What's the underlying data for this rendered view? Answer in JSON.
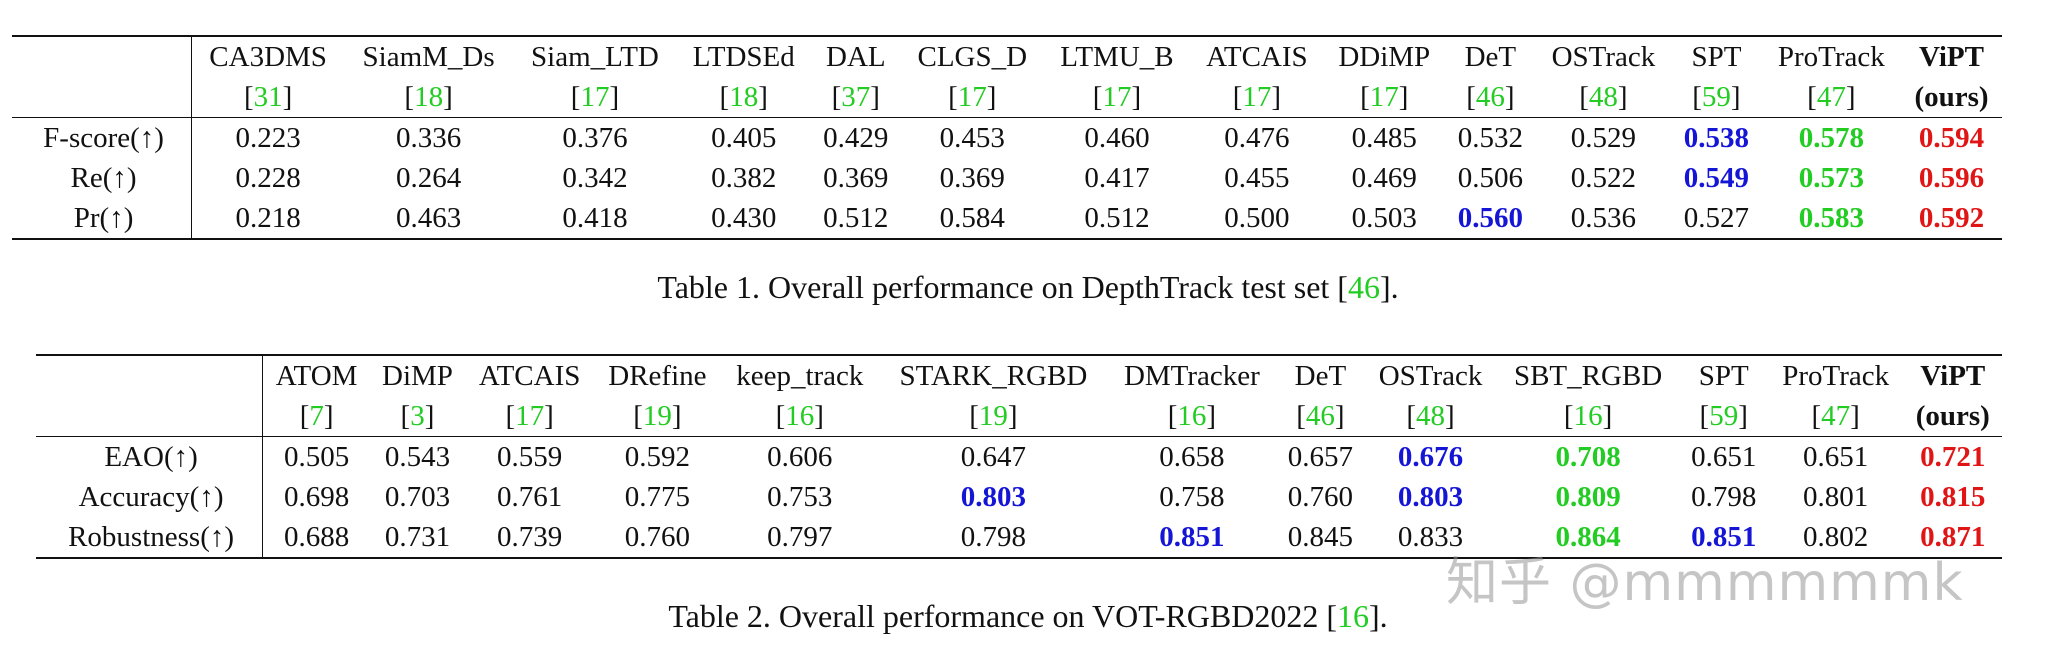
{
  "table1": {
    "columns": [
      {
        "name": "CA3DMS",
        "ref": "31"
      },
      {
        "name": "SiamM_Ds",
        "ref": "18"
      },
      {
        "name": "Siam_LTD",
        "ref": "17"
      },
      {
        "name": "LTDSEd",
        "ref": "18"
      },
      {
        "name": "DAL",
        "ref": "37"
      },
      {
        "name": "CLGS_D",
        "ref": "17"
      },
      {
        "name": "LTMU_B",
        "ref": "17"
      },
      {
        "name": "ATCAIS",
        "ref": "17"
      },
      {
        "name": "DDiMP",
        "ref": "17"
      },
      {
        "name": "DeT",
        "ref": "46"
      },
      {
        "name": "OSTrack",
        "ref": "48"
      },
      {
        "name": "SPT",
        "ref": "59"
      },
      {
        "name": "ProTrack",
        "ref": "47"
      },
      {
        "name": "ViPT",
        "ref": "(ours)",
        "bold": true
      }
    ],
    "rows": [
      {
        "label": "F-score(↑)",
        "values": [
          "0.223",
          "0.336",
          "0.376",
          "0.405",
          "0.429",
          "0.453",
          "0.460",
          "0.476",
          "0.485",
          "0.532",
          "0.529",
          "0.538",
          "0.578",
          "0.594"
        ],
        "styles": [
          "",
          "",
          "",
          "",
          "",
          "",
          "",
          "",
          "",
          "",
          "",
          "blue",
          "green",
          "red"
        ]
      },
      {
        "label": "Re(↑)",
        "values": [
          "0.228",
          "0.264",
          "0.342",
          "0.382",
          "0.369",
          "0.369",
          "0.417",
          "0.455",
          "0.469",
          "0.506",
          "0.522",
          "0.549",
          "0.573",
          "0.596"
        ],
        "styles": [
          "",
          "",
          "",
          "",
          "",
          "",
          "",
          "",
          "",
          "",
          "",
          "blue",
          "green",
          "red"
        ]
      },
      {
        "label": "Pr(↑)",
        "values": [
          "0.218",
          "0.463",
          "0.418",
          "0.430",
          "0.512",
          "0.584",
          "0.512",
          "0.500",
          "0.503",
          "0.560",
          "0.536",
          "0.527",
          "0.583",
          "0.592"
        ],
        "styles": [
          "",
          "",
          "",
          "",
          "",
          "",
          "",
          "",
          "",
          "blue",
          "",
          "",
          "green",
          "red"
        ]
      }
    ],
    "caption_text": "Table 1. Overall performance on DepthTrack test set [",
    "caption_ref": "46",
    "caption_end": "]."
  },
  "table2": {
    "columns": [
      {
        "name": "ATOM",
        "ref": "7"
      },
      {
        "name": "DiMP",
        "ref": "3"
      },
      {
        "name": "ATCAIS",
        "ref": "17"
      },
      {
        "name": "DRefine",
        "ref": "19"
      },
      {
        "name": "keep_track",
        "ref": "16"
      },
      {
        "name": "STARK_RGBD",
        "ref": "19"
      },
      {
        "name": "DMTracker",
        "ref": "16"
      },
      {
        "name": "DeT",
        "ref": "46"
      },
      {
        "name": "OSTrack",
        "ref": "48"
      },
      {
        "name": "SBT_RGBD",
        "ref": "16"
      },
      {
        "name": "SPT",
        "ref": "59"
      },
      {
        "name": "ProTrack",
        "ref": "47"
      },
      {
        "name": "ViPT",
        "ref": "(ours)",
        "bold": true
      }
    ],
    "rows": [
      {
        "label": "EAO(↑)",
        "values": [
          "0.505",
          "0.543",
          "0.559",
          "0.592",
          "0.606",
          "0.647",
          "0.658",
          "0.657",
          "0.676",
          "0.708",
          "0.651",
          "0.651",
          "0.721"
        ],
        "styles": [
          "",
          "",
          "",
          "",
          "",
          "",
          "",
          "",
          "blue",
          "green",
          "",
          "",
          "red"
        ]
      },
      {
        "label": "Accuracy(↑)",
        "values": [
          "0.698",
          "0.703",
          "0.761",
          "0.775",
          "0.753",
          "0.803",
          "0.758",
          "0.760",
          "0.803",
          "0.809",
          "0.798",
          "0.801",
          "0.815"
        ],
        "styles": [
          "",
          "",
          "",
          "",
          "",
          "blue",
          "",
          "",
          "blue",
          "green",
          "",
          "",
          "red"
        ]
      },
      {
        "label": "Robustness(↑)",
        "values": [
          "0.688",
          "0.731",
          "0.739",
          "0.760",
          "0.797",
          "0.798",
          "0.851",
          "0.845",
          "0.833",
          "0.864",
          "0.851",
          "0.802",
          "0.871"
        ],
        "styles": [
          "",
          "",
          "",
          "",
          "",
          "",
          "blue",
          "",
          "",
          "green",
          "blue",
          "",
          "red"
        ]
      }
    ],
    "caption_text": "Table 2. Overall performance on VOT-RGBD2022 [",
    "caption_ref": "16",
    "caption_end": "]."
  },
  "watermark": "知乎 @mmmmmmk"
}
